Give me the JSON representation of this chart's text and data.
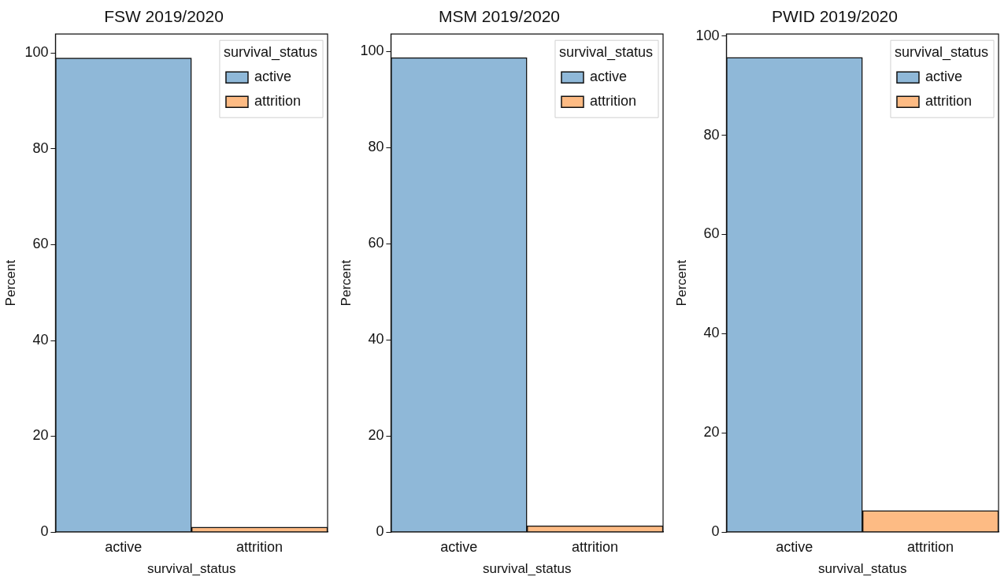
{
  "chart_data": [
    {
      "type": "bar",
      "title": "FSW 2019/2020",
      "xlabel": "survival_status",
      "ylabel": "Percent",
      "categories": [
        "active",
        "attrition"
      ],
      "stacked": true,
      "series": [
        {
          "name": "active",
          "color": "#8fb8d8",
          "values": [
            99.0,
            null
          ]
        },
        {
          "name": "attrition",
          "color": "#fdbb84",
          "values": [
            null,
            1.0
          ]
        }
      ],
      "ylim": [
        0,
        104
      ],
      "yticks": [
        0,
        20,
        40,
        60,
        80,
        100
      ],
      "legend": "top right",
      "legend_title": "survival_status",
      "grid": false
    },
    {
      "type": "bar",
      "title": "MSM 2019/2020",
      "xlabel": "survival_status",
      "ylabel": "Percent",
      "categories": [
        "active",
        "attrition"
      ],
      "stacked": true,
      "series": [
        {
          "name": "active",
          "color": "#8fb8d8",
          "values": [
            98.7,
            null
          ]
        },
        {
          "name": "attrition",
          "color": "#fdbb84",
          "values": [
            null,
            1.3
          ]
        }
      ],
      "ylim": [
        0,
        103.6
      ],
      "yticks": [
        0,
        20,
        40,
        60,
        80,
        100
      ],
      "legend": "top right",
      "legend_title": "survival_status",
      "grid": false
    },
    {
      "type": "bar",
      "title": "PWID 2019/2020",
      "xlabel": "survival_status",
      "ylabel": "Percent",
      "categories": [
        "active",
        "attrition"
      ],
      "stacked": true,
      "series": [
        {
          "name": "active",
          "color": "#8fb8d8",
          "values": [
            95.7,
            null
          ]
        },
        {
          "name": "attrition",
          "color": "#fdbb84",
          "values": [
            null,
            4.3
          ]
        }
      ],
      "ylim": [
        0,
        100.4
      ],
      "yticks": [
        0,
        20,
        40,
        60,
        80,
        100
      ],
      "legend": "top right",
      "legend_title": "survival_status",
      "grid": false
    }
  ]
}
